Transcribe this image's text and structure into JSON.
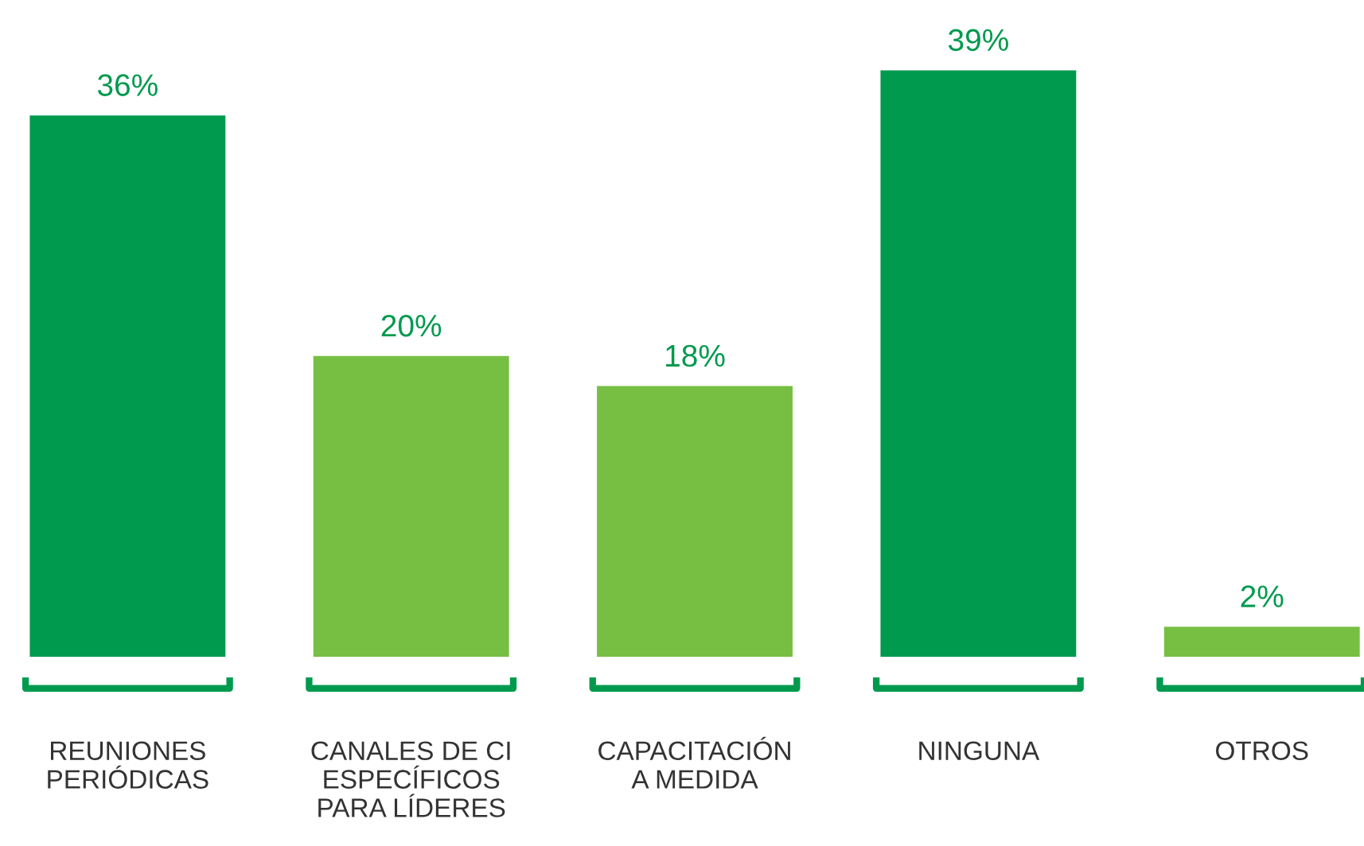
{
  "chart_data": {
    "type": "bar",
    "categories": [
      "REUNIONES\nPERIÓDICAS",
      "CANALES DE CI\nESPECÍFICOS\nPARA LÍDERES",
      "CAPACITACIÓN\nA MEDIDA",
      "NINGUNA",
      "OTROS"
    ],
    "values": [
      36,
      20,
      18,
      39,
      2
    ],
    "colors": [
      "#009a4e",
      "#76bf43",
      "#76bf43",
      "#009a4e",
      "#76bf43"
    ],
    "value_labels": [
      "36%",
      "20%",
      "18%",
      "39%",
      "2%"
    ],
    "grid": false,
    "legend": false
  }
}
